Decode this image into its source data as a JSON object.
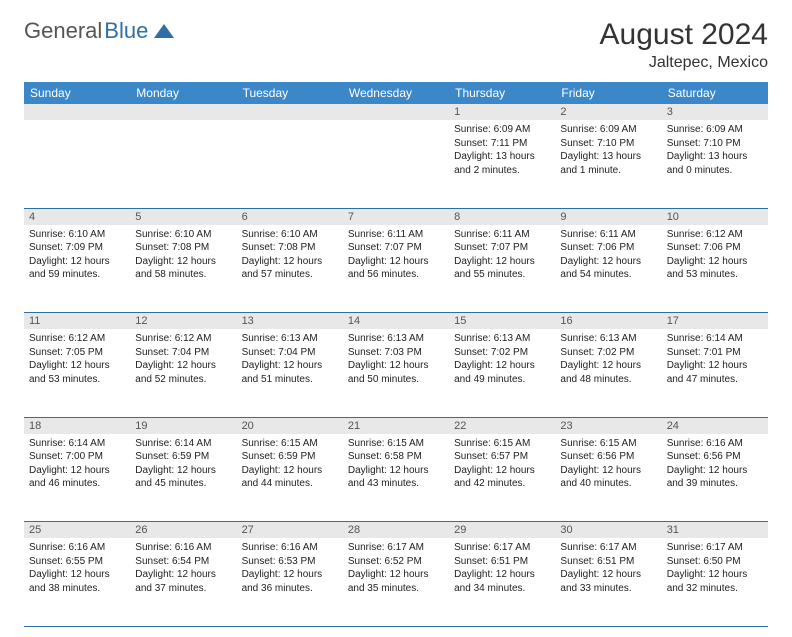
{
  "logo": {
    "text1": "General",
    "text2": "Blue"
  },
  "title": "August 2024",
  "location": "Jaltepec, Mexico",
  "colors": {
    "header_bg": "#3b87c8",
    "header_text": "#ffffff",
    "daynum_bg": "#e8e8e8",
    "border": "#2f6fa8",
    "logo_gray": "#555555",
    "logo_blue": "#2f6fa8"
  },
  "day_headers": [
    "Sunday",
    "Monday",
    "Tuesday",
    "Wednesday",
    "Thursday",
    "Friday",
    "Saturday"
  ],
  "weeks": [
    [
      null,
      null,
      null,
      null,
      {
        "n": "1",
        "sr": "Sunrise: 6:09 AM",
        "ss": "Sunset: 7:11 PM",
        "dl1": "Daylight: 13 hours",
        "dl2": "and 2 minutes."
      },
      {
        "n": "2",
        "sr": "Sunrise: 6:09 AM",
        "ss": "Sunset: 7:10 PM",
        "dl1": "Daylight: 13 hours",
        "dl2": "and 1 minute."
      },
      {
        "n": "3",
        "sr": "Sunrise: 6:09 AM",
        "ss": "Sunset: 7:10 PM",
        "dl1": "Daylight: 13 hours",
        "dl2": "and 0 minutes."
      }
    ],
    [
      {
        "n": "4",
        "sr": "Sunrise: 6:10 AM",
        "ss": "Sunset: 7:09 PM",
        "dl1": "Daylight: 12 hours",
        "dl2": "and 59 minutes."
      },
      {
        "n": "5",
        "sr": "Sunrise: 6:10 AM",
        "ss": "Sunset: 7:08 PM",
        "dl1": "Daylight: 12 hours",
        "dl2": "and 58 minutes."
      },
      {
        "n": "6",
        "sr": "Sunrise: 6:10 AM",
        "ss": "Sunset: 7:08 PM",
        "dl1": "Daylight: 12 hours",
        "dl2": "and 57 minutes."
      },
      {
        "n": "7",
        "sr": "Sunrise: 6:11 AM",
        "ss": "Sunset: 7:07 PM",
        "dl1": "Daylight: 12 hours",
        "dl2": "and 56 minutes."
      },
      {
        "n": "8",
        "sr": "Sunrise: 6:11 AM",
        "ss": "Sunset: 7:07 PM",
        "dl1": "Daylight: 12 hours",
        "dl2": "and 55 minutes."
      },
      {
        "n": "9",
        "sr": "Sunrise: 6:11 AM",
        "ss": "Sunset: 7:06 PM",
        "dl1": "Daylight: 12 hours",
        "dl2": "and 54 minutes."
      },
      {
        "n": "10",
        "sr": "Sunrise: 6:12 AM",
        "ss": "Sunset: 7:06 PM",
        "dl1": "Daylight: 12 hours",
        "dl2": "and 53 minutes."
      }
    ],
    [
      {
        "n": "11",
        "sr": "Sunrise: 6:12 AM",
        "ss": "Sunset: 7:05 PM",
        "dl1": "Daylight: 12 hours",
        "dl2": "and 53 minutes."
      },
      {
        "n": "12",
        "sr": "Sunrise: 6:12 AM",
        "ss": "Sunset: 7:04 PM",
        "dl1": "Daylight: 12 hours",
        "dl2": "and 52 minutes."
      },
      {
        "n": "13",
        "sr": "Sunrise: 6:13 AM",
        "ss": "Sunset: 7:04 PM",
        "dl1": "Daylight: 12 hours",
        "dl2": "and 51 minutes."
      },
      {
        "n": "14",
        "sr": "Sunrise: 6:13 AM",
        "ss": "Sunset: 7:03 PM",
        "dl1": "Daylight: 12 hours",
        "dl2": "and 50 minutes."
      },
      {
        "n": "15",
        "sr": "Sunrise: 6:13 AM",
        "ss": "Sunset: 7:02 PM",
        "dl1": "Daylight: 12 hours",
        "dl2": "and 49 minutes."
      },
      {
        "n": "16",
        "sr": "Sunrise: 6:13 AM",
        "ss": "Sunset: 7:02 PM",
        "dl1": "Daylight: 12 hours",
        "dl2": "and 48 minutes."
      },
      {
        "n": "17",
        "sr": "Sunrise: 6:14 AM",
        "ss": "Sunset: 7:01 PM",
        "dl1": "Daylight: 12 hours",
        "dl2": "and 47 minutes."
      }
    ],
    [
      {
        "n": "18",
        "sr": "Sunrise: 6:14 AM",
        "ss": "Sunset: 7:00 PM",
        "dl1": "Daylight: 12 hours",
        "dl2": "and 46 minutes."
      },
      {
        "n": "19",
        "sr": "Sunrise: 6:14 AM",
        "ss": "Sunset: 6:59 PM",
        "dl1": "Daylight: 12 hours",
        "dl2": "and 45 minutes."
      },
      {
        "n": "20",
        "sr": "Sunrise: 6:15 AM",
        "ss": "Sunset: 6:59 PM",
        "dl1": "Daylight: 12 hours",
        "dl2": "and 44 minutes."
      },
      {
        "n": "21",
        "sr": "Sunrise: 6:15 AM",
        "ss": "Sunset: 6:58 PM",
        "dl1": "Daylight: 12 hours",
        "dl2": "and 43 minutes."
      },
      {
        "n": "22",
        "sr": "Sunrise: 6:15 AM",
        "ss": "Sunset: 6:57 PM",
        "dl1": "Daylight: 12 hours",
        "dl2": "and 42 minutes."
      },
      {
        "n": "23",
        "sr": "Sunrise: 6:15 AM",
        "ss": "Sunset: 6:56 PM",
        "dl1": "Daylight: 12 hours",
        "dl2": "and 40 minutes."
      },
      {
        "n": "24",
        "sr": "Sunrise: 6:16 AM",
        "ss": "Sunset: 6:56 PM",
        "dl1": "Daylight: 12 hours",
        "dl2": "and 39 minutes."
      }
    ],
    [
      {
        "n": "25",
        "sr": "Sunrise: 6:16 AM",
        "ss": "Sunset: 6:55 PM",
        "dl1": "Daylight: 12 hours",
        "dl2": "and 38 minutes."
      },
      {
        "n": "26",
        "sr": "Sunrise: 6:16 AM",
        "ss": "Sunset: 6:54 PM",
        "dl1": "Daylight: 12 hours",
        "dl2": "and 37 minutes."
      },
      {
        "n": "27",
        "sr": "Sunrise: 6:16 AM",
        "ss": "Sunset: 6:53 PM",
        "dl1": "Daylight: 12 hours",
        "dl2": "and 36 minutes."
      },
      {
        "n": "28",
        "sr": "Sunrise: 6:17 AM",
        "ss": "Sunset: 6:52 PM",
        "dl1": "Daylight: 12 hours",
        "dl2": "and 35 minutes."
      },
      {
        "n": "29",
        "sr": "Sunrise: 6:17 AM",
        "ss": "Sunset: 6:51 PM",
        "dl1": "Daylight: 12 hours",
        "dl2": "and 34 minutes."
      },
      {
        "n": "30",
        "sr": "Sunrise: 6:17 AM",
        "ss": "Sunset: 6:51 PM",
        "dl1": "Daylight: 12 hours",
        "dl2": "and 33 minutes."
      },
      {
        "n": "31",
        "sr": "Sunrise: 6:17 AM",
        "ss": "Sunset: 6:50 PM",
        "dl1": "Daylight: 12 hours",
        "dl2": "and 32 minutes."
      }
    ]
  ]
}
